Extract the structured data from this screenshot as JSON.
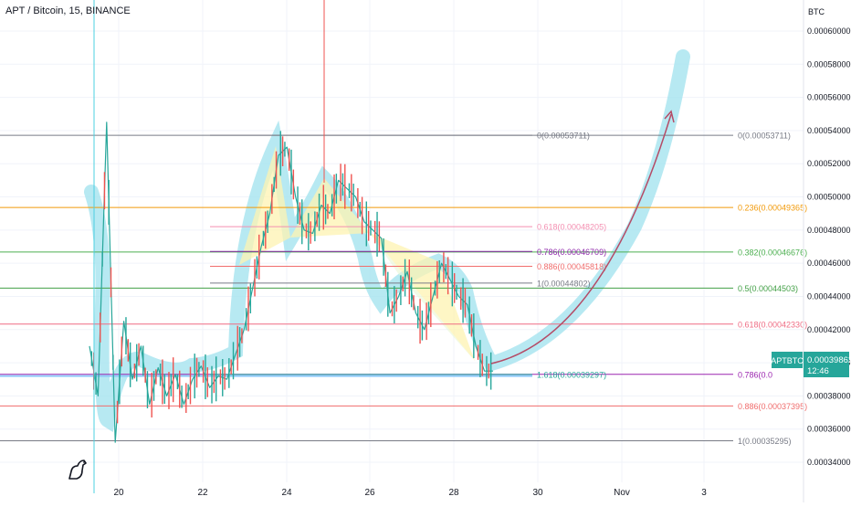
{
  "header": {
    "symbol_title": "APT / Bitcoin, 15, BINANCE"
  },
  "axis": {
    "currency_label": "BTC"
  },
  "price_tag": {
    "symbol": "APTBTC",
    "price": "0.00039862",
    "countdown": "12:46",
    "fib_left_cut": "0.786(0.0"
  },
  "chart_data": {
    "type": "line",
    "title": "APT / Bitcoin, 15, BINANCE",
    "ylabel": "BTC",
    "ylim": [
      0.000332,
      0.000616
    ],
    "y_ticks": [
      "0.00034000",
      "0.00036000",
      "0.00038000",
      "0.00040000",
      "0.00042000",
      "0.00044000",
      "0.00046000",
      "0.00048000",
      "0.00050000",
      "0.00052000",
      "0.00054000",
      "0.00056000",
      "0.00058000",
      "0.00060000"
    ],
    "x_ticks": [
      "20",
      "22",
      "24",
      "26",
      "28",
      "30",
      "Nov",
      "3"
    ],
    "grid": true,
    "fib_major": [
      {
        "level": "0",
        "price": 0.00053711,
        "label": "0(0.00053711)",
        "color": "#787b86"
      },
      {
        "level": "0.236",
        "price": 0.00049365,
        "label": "0.236(0.00049365)",
        "color": "#f29a0a"
      },
      {
        "level": "0.382",
        "price": 0.00046676,
        "label": "0.382(0.00046676)",
        "color": "#4caf50"
      },
      {
        "level": "0.5",
        "price": 0.00044503,
        "label": "0.5(0.00044503)",
        "color": "#43a047"
      },
      {
        "level": "0.618",
        "price": 0.0004233,
        "label": "0.618(0.00042330)",
        "color": "#ef6c84"
      },
      {
        "level": "0.786",
        "price": 0.000393,
        "label": "0.786(0.0",
        "color": "#9c27b0"
      },
      {
        "level": "0.886",
        "price": 0.00037395,
        "label": "0.886(0.00037395)",
        "color": "#f06d6d"
      },
      {
        "level": "1",
        "price": 0.00035295,
        "label": "1(0.00035295)",
        "color": "#787b86"
      }
    ],
    "fib_minor": [
      {
        "level": "0",
        "price": 0.00053711,
        "label": "0(0.00053711)",
        "color": "#787b86"
      },
      {
        "level": "0.618",
        "price": 0.00048205,
        "label": "0.618(0.00048205)",
        "color": "#f48fb1"
      },
      {
        "level": "0.786",
        "price": 0.00046709,
        "label": "0.786(0.00046709)",
        "color": "#8e24aa"
      },
      {
        "level": "0.886",
        "price": 0.00045818,
        "label": "0.886(0.00045818)",
        "color": "#f06d6d"
      },
      {
        "level": "1",
        "price": 0.00044802,
        "label": "1(0.00044802)",
        "color": "#787b86"
      },
      {
        "level": "1.618",
        "price": 0.00039297,
        "label": "1.618(0.00039297)",
        "color": "#26a69a"
      }
    ],
    "price_series": [
      0.00041,
      0.00038,
      0.000545,
      0.000352,
      0.000425,
      0.00039,
      0.00041,
      0.000375,
      0.000397,
      0.00038,
      0.000393,
      0.000375,
      0.00039,
      0.000398,
      0.000385,
      0.000392,
      0.00039,
      0.000405,
      0.00042,
      0.000445,
      0.00047,
      0.00049,
      0.000525,
      0.00053,
      0.0005,
      0.00048,
      0.000478,
      0.000495,
      0.00049,
      0.00051,
      0.000505,
      0.0005,
      0.000485,
      0.00048,
      0.000475,
      0.00043,
      0.00044,
      0.000455,
      0.00043,
      0.00042,
      0.00044,
      0.00046,
      0.00045,
      0.00044,
      0.000435,
      0.00041,
      0.000395,
      0.000395
    ],
    "projection_target": 0.000555
  }
}
